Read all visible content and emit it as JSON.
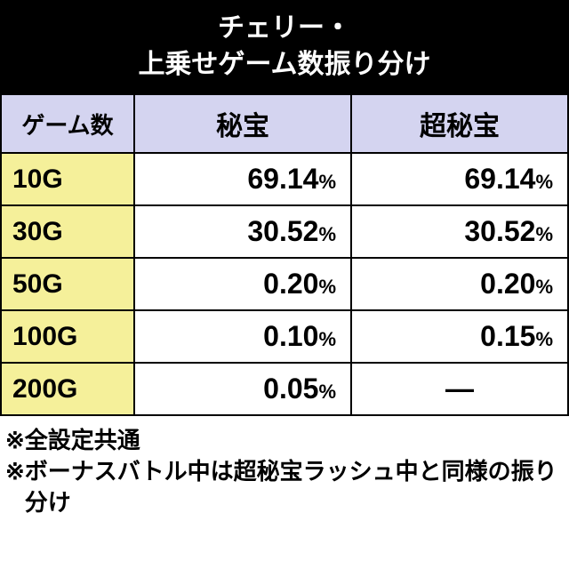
{
  "title": {
    "line1": "チェリー・",
    "line2": "上乗せゲーム数振り分け"
  },
  "table": {
    "headers": {
      "games": "ゲーム数",
      "col1": "秘宝",
      "col2": "超秘宝"
    },
    "rows": [
      {
        "label": "10G",
        "col1": "69.14",
        "col1_unit": "%",
        "col2": "69.14",
        "col2_unit": "%"
      },
      {
        "label": "30G",
        "col1": "30.52",
        "col1_unit": "%",
        "col2": "30.52",
        "col2_unit": "%"
      },
      {
        "label": "50G",
        "col1": "0.20",
        "col1_unit": "%",
        "col2": "0.20",
        "col2_unit": "%"
      },
      {
        "label": "100G",
        "col1": "0.10",
        "col1_unit": "%",
        "col2": "0.15",
        "col2_unit": "%"
      },
      {
        "label": "200G",
        "col1": "0.05",
        "col1_unit": "%",
        "col2": "—",
        "col2_unit": ""
      }
    ],
    "colors": {
      "header_bg": "#d4d4f0",
      "label_bg": "#f5f09a",
      "cell_bg": "#ffffff",
      "border": "#000000",
      "title_bg": "#000000",
      "title_fg": "#ffffff"
    }
  },
  "notes": {
    "marker": "※",
    "items": [
      "全設定共通",
      "ボーナスバトル中は超秘宝ラッシュ中と同様の振り分け"
    ]
  }
}
